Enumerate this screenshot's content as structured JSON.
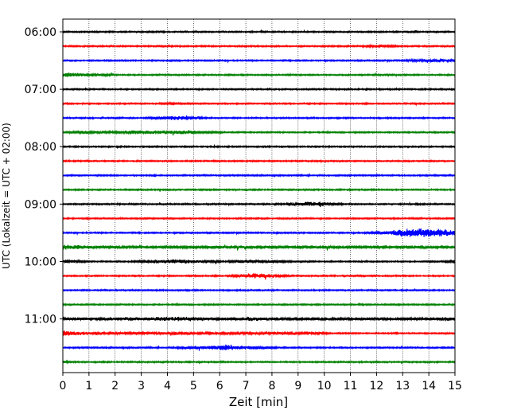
{
  "chart_data": {
    "type": "line",
    "title": "",
    "xlabel": "Zeit  [min]",
    "ylabel": "UTC (Lokalzeit = UTC + 02:00)",
    "xlim": [
      0,
      15
    ],
    "x_ticks": [
      "0",
      "1",
      "2",
      "3",
      "4",
      "5",
      "6",
      "7",
      "8",
      "9",
      "10",
      "11",
      "12",
      "13",
      "14",
      "15"
    ],
    "y_ticks": [
      "06:00",
      "07:00",
      "08:00",
      "09:00",
      "10:00",
      "11:00"
    ],
    "grid": "vertical dotted at each minute",
    "colors": [
      "#000000",
      "#ff0000",
      "#0000ff",
      "#008000"
    ],
    "series": [
      {
        "color": "#000000",
        "values": [
          1,
          1,
          1,
          1,
          1,
          1,
          1,
          1,
          1,
          1,
          1,
          1,
          1,
          1,
          1,
          1,
          1,
          1,
          1,
          1,
          1,
          1,
          1,
          1,
          1,
          1,
          1,
          1,
          1,
          1
        ]
      },
      {
        "color": "#ff0000",
        "values": [
          1,
          1,
          1,
          1,
          1,
          1,
          1,
          1,
          1,
          1,
          1,
          1,
          1,
          1,
          1,
          1,
          1,
          1,
          1,
          1,
          1,
          1,
          1,
          2,
          2,
          1,
          1,
          1,
          1,
          1
        ]
      },
      {
        "color": "#0000ff",
        "values": [
          1,
          1,
          1,
          1,
          1,
          1,
          1,
          1,
          1,
          1,
          1,
          1,
          1,
          1,
          1,
          1,
          1,
          1,
          1,
          1,
          1,
          1,
          1,
          1,
          1,
          1,
          2,
          2,
          2,
          2
        ]
      },
      {
        "color": "#008000",
        "values": [
          4,
          3,
          2,
          2,
          1,
          1,
          1,
          1,
          1,
          1,
          1,
          1,
          1,
          1,
          1,
          1,
          1,
          1,
          1,
          1,
          1,
          1,
          1,
          1,
          1,
          1,
          1,
          1,
          1,
          1
        ]
      },
      {
        "color": "#000000",
        "values": [
          1,
          1,
          1,
          1,
          1,
          1,
          1,
          1,
          1,
          1,
          1,
          1,
          1,
          1,
          1,
          1,
          1,
          1,
          1,
          1,
          1,
          1,
          1,
          1,
          1,
          1,
          1,
          1,
          1,
          1
        ]
      },
      {
        "color": "#ff0000",
        "values": [
          1,
          1,
          1,
          1,
          1,
          1,
          1,
          1,
          2,
          1,
          1,
          1,
          1,
          1,
          1,
          1,
          1,
          1,
          1,
          1,
          1,
          1,
          1,
          1,
          1,
          1,
          1,
          1,
          1,
          1
        ]
      },
      {
        "color": "#0000ff",
        "values": [
          1,
          1,
          1,
          1,
          1,
          1,
          1,
          2,
          3,
          4,
          2,
          1,
          1,
          1,
          1,
          1,
          1,
          1,
          1,
          1,
          1,
          1,
          1,
          1,
          1,
          1,
          1,
          1,
          1,
          1
        ]
      },
      {
        "color": "#008000",
        "values": [
          1,
          2,
          2,
          2,
          2,
          3,
          3,
          2,
          3,
          3,
          2,
          2,
          1,
          1,
          1,
          1,
          1,
          1,
          1,
          1,
          1,
          1,
          1,
          1,
          1,
          1,
          1,
          1,
          1,
          1
        ]
      },
      {
        "color": "#000000",
        "values": [
          1,
          1,
          1,
          1,
          1,
          1,
          1,
          1,
          1,
          1,
          1,
          1,
          1,
          1,
          1,
          1,
          1,
          1,
          1,
          1,
          1,
          1,
          1,
          1,
          1,
          1,
          1,
          1,
          1,
          1
        ]
      },
      {
        "color": "#ff0000",
        "values": [
          1,
          1,
          1,
          1,
          1,
          1,
          1,
          1,
          1,
          1,
          1,
          1,
          1,
          1,
          1,
          1,
          1,
          1,
          1,
          1,
          1,
          1,
          1,
          1,
          1,
          1,
          1,
          1,
          1,
          1
        ]
      },
      {
        "color": "#0000ff",
        "values": [
          1,
          1,
          1,
          1,
          1,
          1,
          1,
          1,
          1,
          1,
          1,
          1,
          1,
          1,
          1,
          1,
          1,
          1,
          1,
          1,
          1,
          1,
          1,
          1,
          1,
          1,
          1,
          1,
          1,
          1
        ]
      },
      {
        "color": "#008000",
        "values": [
          1,
          1,
          1,
          1,
          1,
          1,
          1,
          1,
          1,
          1,
          1,
          1,
          1,
          1,
          1,
          1,
          1,
          1,
          1,
          1,
          1,
          1,
          1,
          1,
          1,
          1,
          1,
          1,
          1,
          1
        ]
      },
      {
        "color": "#000000",
        "values": [
          1,
          1,
          1,
          1,
          1,
          1,
          1,
          1,
          1,
          1,
          1,
          1,
          1,
          1,
          1,
          1,
          1,
          2,
          3,
          4,
          2,
          1,
          1,
          1,
          1,
          1,
          1,
          1,
          1,
          1
        ]
      },
      {
        "color": "#ff0000",
        "values": [
          1,
          1,
          1,
          1,
          1,
          1,
          1,
          1,
          1,
          1,
          1,
          1,
          1,
          1,
          1,
          1,
          1,
          1,
          1,
          1,
          1,
          1,
          1,
          1,
          1,
          1,
          1,
          1,
          1,
          1
        ]
      },
      {
        "color": "#0000ff",
        "values": [
          1,
          1,
          1,
          1,
          1,
          1,
          1,
          1,
          1,
          1,
          1,
          1,
          1,
          1,
          1,
          1,
          1,
          1,
          1,
          1,
          1,
          1,
          1,
          2,
          3,
          5,
          6,
          6,
          5,
          4
        ]
      },
      {
        "color": "#008000",
        "values": [
          4,
          3,
          2,
          2,
          2,
          2,
          2,
          2,
          2,
          2,
          2,
          2,
          2,
          2,
          2,
          2,
          2,
          2,
          2,
          2,
          2,
          2,
          2,
          2,
          2,
          2,
          2,
          2,
          2,
          2
        ]
      },
      {
        "color": "#000000",
        "values": [
          3,
          2,
          1,
          1,
          1,
          1,
          2,
          2,
          3,
          3,
          2,
          2,
          1,
          2,
          2,
          2,
          2,
          1,
          1,
          1,
          1,
          1,
          1,
          1,
          1,
          1,
          1,
          1,
          1,
          2
        ]
      },
      {
        "color": "#ff0000",
        "values": [
          1,
          1,
          1,
          1,
          1,
          1,
          1,
          1,
          1,
          1,
          1,
          1,
          1,
          2,
          4,
          3,
          2,
          1,
          1,
          1,
          1,
          1,
          1,
          1,
          1,
          1,
          1,
          1,
          1,
          1
        ]
      },
      {
        "color": "#0000ff",
        "values": [
          1,
          1,
          1,
          1,
          1,
          1,
          1,
          1,
          1,
          1,
          1,
          1,
          1,
          1,
          1,
          1,
          1,
          1,
          1,
          1,
          1,
          1,
          1,
          1,
          1,
          1,
          1,
          1,
          1,
          1
        ]
      },
      {
        "color": "#008000",
        "values": [
          1,
          1,
          1,
          1,
          1,
          1,
          1,
          1,
          1,
          1,
          1,
          1,
          1,
          1,
          1,
          1,
          1,
          1,
          1,
          1,
          1,
          1,
          1,
          1,
          1,
          1,
          1,
          1,
          1,
          1
        ]
      },
      {
        "color": "#000000",
        "values": [
          2,
          2,
          2,
          2,
          2,
          3,
          2,
          3,
          3,
          3,
          3,
          2,
          2,
          2,
          3,
          2,
          2,
          2,
          2,
          2,
          2,
          2,
          2,
          2,
          2,
          2,
          2,
          2,
          3,
          3
        ]
      },
      {
        "color": "#ff0000",
        "values": [
          4,
          3,
          2,
          2,
          2,
          2,
          2,
          2,
          2,
          2,
          2,
          2,
          2,
          2,
          2,
          2,
          2,
          2,
          2,
          2,
          1,
          1,
          1,
          1,
          1,
          1,
          1,
          1,
          1,
          1
        ]
      },
      {
        "color": "#0000ff",
        "values": [
          1,
          1,
          1,
          1,
          1,
          1,
          1,
          1,
          1,
          2,
          2,
          3,
          4,
          3,
          2,
          2,
          1,
          1,
          1,
          1,
          1,
          1,
          1,
          1,
          1,
          1,
          1,
          1,
          1,
          1
        ]
      },
      {
        "color": "#008000",
        "values": [
          2,
          1,
          1,
          1,
          1,
          1,
          1,
          1,
          1,
          1,
          1,
          1,
          1,
          1,
          1,
          1,
          1,
          1,
          1,
          1,
          1,
          1,
          1,
          1,
          1,
          1,
          1,
          1,
          1,
          1
        ]
      }
    ]
  }
}
